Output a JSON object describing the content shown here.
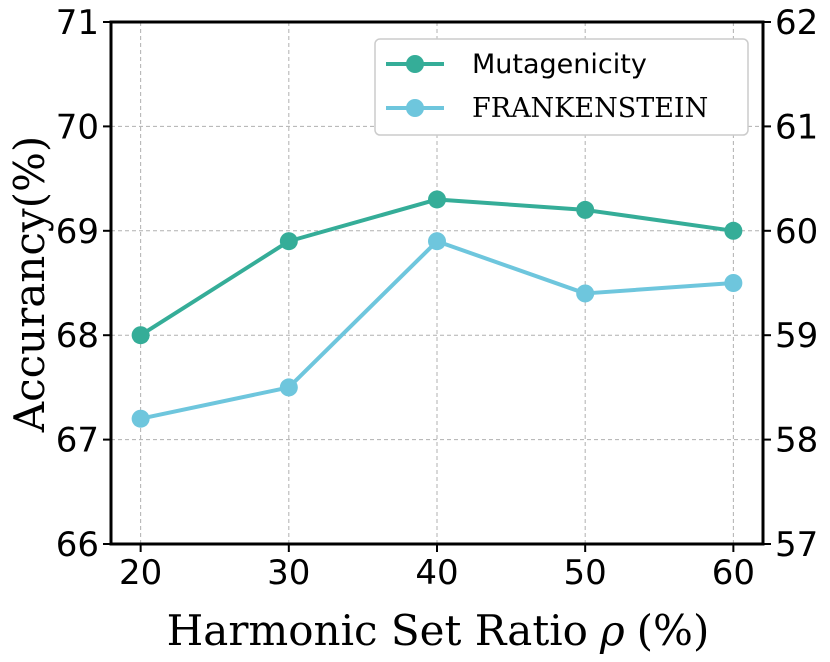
{
  "chart_data": {
    "type": "line",
    "xlabel": "Harmonic Set Ratio",
    "xlabel_symbol": "ρ",
    "xlabel_unit": "(%)",
    "ylabel": "Accurancy(%)",
    "x": [
      20,
      30,
      40,
      50,
      60
    ],
    "xticks": [
      "20",
      "30",
      "40",
      "50",
      "60"
    ],
    "xlim": [
      18,
      62
    ],
    "ylim_left": [
      66,
      71
    ],
    "yticks_left": [
      "66",
      "67",
      "68",
      "69",
      "70",
      "71"
    ],
    "ylim_right": [
      57,
      62
    ],
    "yticks_right": [
      "57",
      "58",
      "59",
      "60",
      "61",
      "62"
    ],
    "grid": true,
    "legend_position": "top-right",
    "series": [
      {
        "name": "Mutagenicity",
        "axis": "left",
        "color": "#35ad98",
        "values": [
          68.0,
          68.9,
          69.3,
          69.2,
          69.0
        ]
      },
      {
        "name": "FRANKENSTEIN",
        "axis": "right",
        "color": "#6ec6dd",
        "values": [
          58.2,
          58.5,
          59.9,
          59.4,
          59.5
        ]
      }
    ]
  }
}
